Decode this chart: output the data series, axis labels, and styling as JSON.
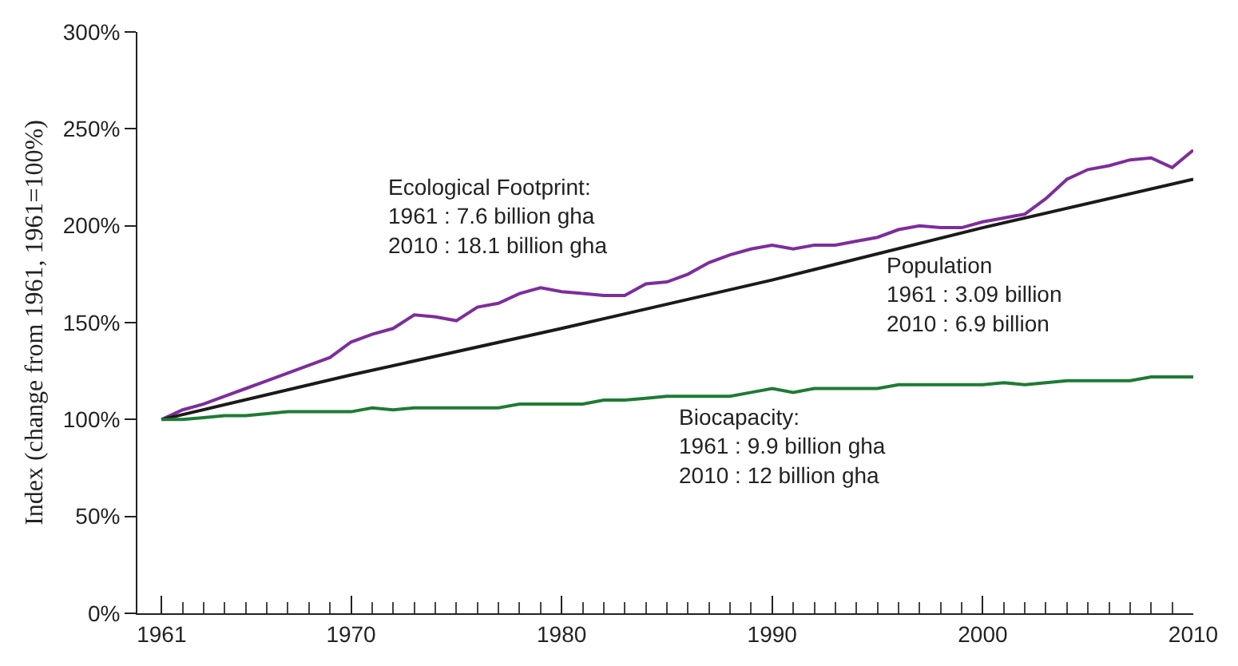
{
  "chart_data": {
    "type": "line",
    "ylabel": "Index (change from 1961, 1961=100%)",
    "x": [
      1961,
      1962,
      1963,
      1964,
      1965,
      1966,
      1967,
      1968,
      1969,
      1970,
      1971,
      1972,
      1973,
      1974,
      1975,
      1976,
      1977,
      1978,
      1979,
      1980,
      1981,
      1982,
      1983,
      1984,
      1985,
      1986,
      1987,
      1988,
      1989,
      1990,
      1991,
      1992,
      1993,
      1994,
      1995,
      1996,
      1997,
      1998,
      1999,
      2000,
      2001,
      2002,
      2003,
      2004,
      2005,
      2006,
      2007,
      2008,
      2009,
      2010
    ],
    "series": [
      {
        "color": "#7d2d9c",
        "values": [
          100,
          105,
          108,
          112,
          116,
          120,
          124,
          128,
          132,
          140,
          144,
          147,
          154,
          153,
          151,
          158,
          160,
          165,
          168,
          166,
          165,
          164,
          164,
          170,
          171,
          175,
          181,
          185,
          188,
          190,
          188,
          190,
          190,
          192,
          194,
          198,
          200,
          199,
          199,
          202,
          204,
          206,
          214,
          224,
          229,
          231,
          234,
          235,
          230,
          239
        ]
      },
      {
        "color": "#1a1a1a",
        "x": [
          1961,
          1970,
          1980,
          1990,
          2000,
          2010
        ],
        "values": [
          100,
          123,
          147,
          172,
          199,
          224
        ]
      },
      {
        "color": "#1e7b34",
        "values": [
          100,
          100,
          101,
          102,
          102,
          103,
          104,
          104,
          104,
          104,
          106,
          105,
          106,
          106,
          106,
          106,
          106,
          108,
          108,
          108,
          108,
          110,
          110,
          111,
          112,
          112,
          112,
          112,
          114,
          116,
          114,
          116,
          116,
          116,
          116,
          118,
          118,
          118,
          118,
          118,
          119,
          118,
          119,
          120,
          120,
          120,
          120,
          122,
          122,
          122
        ]
      }
    ],
    "annotations": [
      "Ecological Footprint:\n1961 : 7.6 billion gha\n2010 : 18.1 billion gha",
      "Population\n1961 : 3.09 billion\n2010 : 6.9 billion",
      "Biocapacity:\n1961 : 9.9 billion gha\n2010 : 12 billion gha"
    ],
    "xlim": [
      1959.85,
      2010
    ],
    "xticks": [
      1961,
      1970,
      1980,
      1990,
      2000,
      2010,
      {
        "value": 1962,
        "label": null
      },
      {
        "value": 1963,
        "label": null
      },
      {
        "value": 1964,
        "label": null
      },
      {
        "value": 1965,
        "label": null
      },
      {
        "value": 1966,
        "label": null
      },
      {
        "value": 1967,
        "label": null
      },
      {
        "value": 1968,
        "label": null
      },
      {
        "value": 1969,
        "label": null
      },
      {
        "value": 1971,
        "label": null
      },
      {
        "value": 1972,
        "label": null
      },
      {
        "value": 1973,
        "label": null
      },
      {
        "value": 1974,
        "label": null
      },
      {
        "value": 1975,
        "label": null
      },
      {
        "value": 1976,
        "label": null
      },
      {
        "value": 1977,
        "label": null
      },
      {
        "value": 1978,
        "label": null
      },
      {
        "value": 1979,
        "label": null
      },
      {
        "value": 1981,
        "label": null
      },
      {
        "value": 1982,
        "label": null
      },
      {
        "value": 1983,
        "label": null
      },
      {
        "value": 1984,
        "label": null
      },
      {
        "value": 1985,
        "label": null
      },
      {
        "value": 1986,
        "label": null
      },
      {
        "value": 1987,
        "label": null
      },
      {
        "value": 1988,
        "label": null
      },
      {
        "value": 1989,
        "label": null
      },
      {
        "value": 1991,
        "label": null
      },
      {
        "value": 1992,
        "label": null
      },
      {
        "value": 1993,
        "label": null
      },
      {
        "value": 1994,
        "label": null
      },
      {
        "value": 1995,
        "label": null
      },
      {
        "value": 1996,
        "label": null
      },
      {
        "value": 1997,
        "label": null
      },
      {
        "value": 1998,
        "label": null
      },
      {
        "value": 1999,
        "label": null
      },
      {
        "value": 2001,
        "label": null
      },
      {
        "value": 2002,
        "label": null
      },
      {
        "value": 2003,
        "label": null
      },
      {
        "value": 2004,
        "label": null
      },
      {
        "value": 2005,
        "label": null
      },
      {
        "value": 2006,
        "label": null
      },
      {
        "value": 2007,
        "label": null
      },
      {
        "value": 2008,
        "label": null
      },
      {
        "value": 2009,
        "label": null
      }
    ],
    "ylim": [
      0,
      300
    ],
    "yticks": [
      {
        "value": 0,
        "label": "0%"
      },
      {
        "value": 50,
        "label": "50%"
      },
      {
        "value": 100,
        "label": "100%"
      },
      {
        "value": 150,
        "label": "150%"
      },
      {
        "value": 200,
        "label": "200%"
      },
      {
        "value": 250,
        "label": "250%"
      },
      {
        "value": 300,
        "label": "300%"
      }
    ],
    "marker": "none",
    "line_style": "solid"
  }
}
